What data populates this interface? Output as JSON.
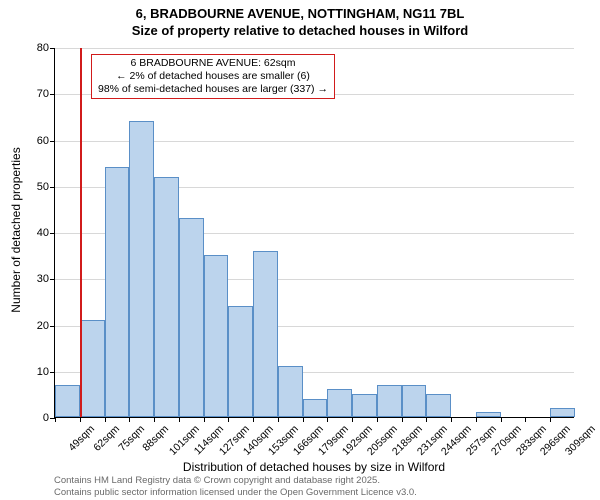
{
  "title_line1": "6, BRADBOURNE AVENUE, NOTTINGHAM, NG11 7BL",
  "title_line2": "Size of property relative to detached houses in Wilford",
  "ylabel": "Number of detached properties",
  "xlabel": "Distribution of detached houses by size in Wilford",
  "chart": {
    "type": "histogram",
    "ylim_max": 80,
    "ytick_step": 10,
    "bar_fill": "#bcd4ed",
    "bar_border": "#5a8fc7",
    "grid_color": "#d8d8d8",
    "background": "#ffffff",
    "marker_line_color": "#d11b1b",
    "marker_x_index": 1,
    "categories": [
      "49sqm",
      "62sqm",
      "75sqm",
      "88sqm",
      "101sqm",
      "114sqm",
      "127sqm",
      "140sqm",
      "153sqm",
      "166sqm",
      "179sqm",
      "192sqm",
      "205sqm",
      "218sqm",
      "231sqm",
      "244sqm",
      "257sqm",
      "270sqm",
      "283sqm",
      "296sqm",
      "309sqm"
    ],
    "values": [
      7,
      21,
      54,
      64,
      52,
      43,
      35,
      24,
      36,
      11,
      4,
      6,
      5,
      7,
      7,
      5,
      0,
      1,
      0,
      0,
      2
    ]
  },
  "annotation": {
    "border_color": "#d11b1b",
    "line1": "6 BRADBOURNE AVENUE: 62sqm",
    "line2": "← 2% of detached houses are smaller (6)",
    "line3": "98% of semi-detached houses are larger (337) →"
  },
  "footer_line1": "Contains HM Land Registry data © Crown copyright and database right 2025.",
  "footer_line2": "Contains public sector information licensed under the Open Government Licence v3.0."
}
